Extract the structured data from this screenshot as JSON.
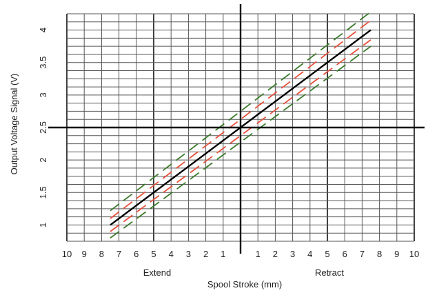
{
  "chart_data": {
    "type": "line",
    "title": "",
    "xlabel": "Spool Stroke (mm)",
    "ylabel": "Output Voltage Signal (V)",
    "x_left_label": "Extend",
    "x_right_label": "Retract",
    "xlim": [
      -10,
      10
    ],
    "ylim": [
      0.75,
      4.25
    ],
    "x_ticks": [
      {
        "value": -10,
        "label": "10"
      },
      {
        "value": -9,
        "label": "9"
      },
      {
        "value": -8,
        "label": "8"
      },
      {
        "value": -7,
        "label": "7"
      },
      {
        "value": -6,
        "label": "6"
      },
      {
        "value": -5,
        "label": "5"
      },
      {
        "value": -4,
        "label": "4"
      },
      {
        "value": -3,
        "label": "3"
      },
      {
        "value": -2,
        "label": "2"
      },
      {
        "value": -1,
        "label": "1"
      },
      {
        "value": 1,
        "label": "1"
      },
      {
        "value": 2,
        "label": "2"
      },
      {
        "value": 3,
        "label": "3"
      },
      {
        "value": 4,
        "label": "4"
      },
      {
        "value": 5,
        "label": "5"
      },
      {
        "value": 6,
        "label": "6"
      },
      {
        "value": 7,
        "label": "7"
      },
      {
        "value": 8,
        "label": "8"
      },
      {
        "value": 9,
        "label": "9"
      },
      {
        "value": 10,
        "label": "10"
      }
    ],
    "y_ticks": [
      {
        "value": 1,
        "label": "1"
      },
      {
        "value": 1.5,
        "label": "1.5"
      },
      {
        "value": 2,
        "label": "2"
      },
      {
        "value": 2.5,
        "label": "2.5"
      },
      {
        "value": 3,
        "label": "3"
      },
      {
        "value": 3.5,
        "label": "3.5"
      },
      {
        "value": 4,
        "label": "4"
      }
    ],
    "grid": true,
    "series": [
      {
        "color": "#000000",
        "style": "solid",
        "x": [
          -7.5,
          7.5
        ],
        "y": [
          1.0,
          4.0
        ]
      },
      {
        "color": "#e8503a",
        "style": "dashed",
        "x": [
          -7.5,
          7.5
        ],
        "y": [
          1.1,
          4.15
        ]
      },
      {
        "color": "#e8503a",
        "style": "dashed",
        "x": [
          -7.5,
          7.5
        ],
        "y": [
          0.9,
          3.85
        ]
      },
      {
        "color": "#3a7a2a",
        "style": "dashed",
        "x": [
          -7.5,
          7.5
        ],
        "y": [
          1.22,
          4.28
        ]
      },
      {
        "color": "#3a7a2a",
        "style": "dashed",
        "x": [
          -7.5,
          7.5
        ],
        "y": [
          0.8,
          3.75
        ]
      }
    ]
  }
}
